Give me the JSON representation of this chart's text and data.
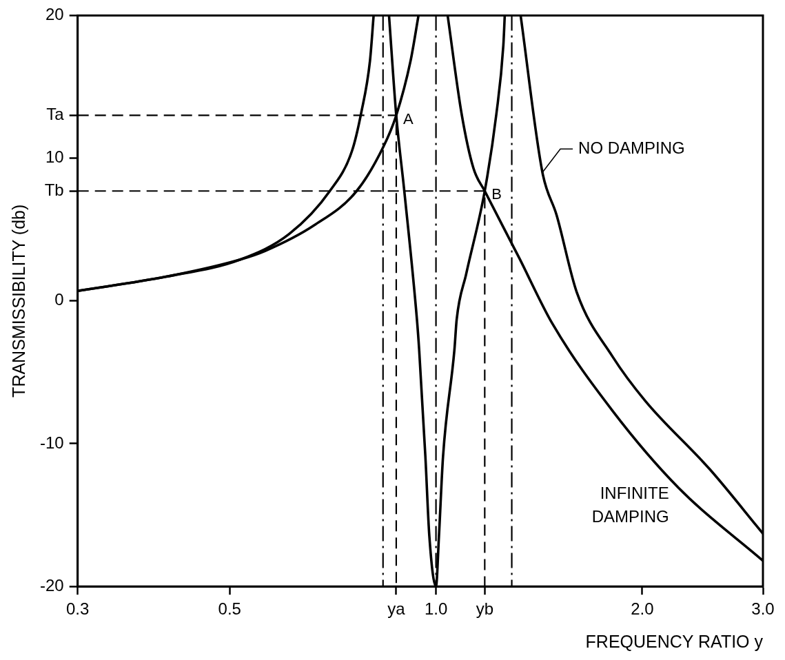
{
  "chart_data": {
    "type": "line",
    "xlabel": "FREQUENCY RATIO y",
    "ylabel": "TRANSMISSIBILITY (db)",
    "log": "x",
    "grid": false,
    "legend": false,
    "marker": "none",
    "xlim": [
      0.3,
      3
    ],
    "ylim": [
      -20,
      20
    ],
    "xticks": [
      {
        "value": 0.3,
        "label": "0.3"
      },
      {
        "value": 0.5,
        "label": "0.5"
      },
      {
        "value": 0.875,
        "label": "ya"
      },
      {
        "value": 1,
        "label": "1.0"
      },
      {
        "value": 1.178,
        "label": "yb"
      },
      {
        "value": 2,
        "label": "2.0"
      },
      {
        "value": 3,
        "label": "3.0"
      }
    ],
    "yticks": [
      -20,
      -10,
      0,
      {
        "value": 7.7,
        "label": "Tb"
      },
      10,
      {
        "value": 13,
        "label": "Ta"
      },
      20
    ],
    "series": [
      {
        "name": "NO DAMPING",
        "type": "line",
        "color": "#000000",
        "line_style": "solid",
        "x": [
          0.3,
          0.404,
          0.518,
          0.611,
          0.7,
          0.754,
          0.778,
          0.801,
          0.811,
          0.837,
          0.854,
          0.875,
          0.899,
          0.938,
          0.945,
          0.965,
          0.978,
          1.0,
          1.01,
          1.024,
          1.064,
          1.072,
          1.107,
          1.178,
          1.225,
          1.254,
          1.26,
          1.29,
          1.329,
          1.43,
          1.5,
          1.605,
          1.81,
          2.02,
          2.51,
          3.0
        ],
        "values": [
          0.7,
          1.7,
          2.9,
          4.7,
          7.7,
          10.5,
          13.2,
          16.8,
          20,
          null,
          20,
          13,
          7.7,
          -1.3,
          -3.4,
          -10.9,
          -16.5,
          -20,
          -16.5,
          -10.9,
          -3.4,
          -1.3,
          1.9,
          7.7,
          13.1,
          17.9,
          20,
          null,
          20,
          9,
          6,
          0.6,
          -3.9,
          -7,
          -11.8,
          -16.3
        ]
      },
      {
        "name": "INFINITE DAMPING",
        "type": "line",
        "color": "#000000",
        "line_style": "solid",
        "x": [
          0.3,
          0.404,
          0.518,
          0.563,
          0.664,
          0.766,
          0.838,
          0.875,
          0.918,
          0.943,
          0.99,
          1.04,
          1.09,
          1.134,
          1.178,
          1.323,
          1.479,
          1.81,
          2.26,
          3.0
        ],
        "values": [
          0.7,
          1.7,
          2.9,
          3.5,
          5.3,
          7.7,
          10.8,
          13,
          16.8,
          20,
          null,
          20,
          13.1,
          9.3,
          7.7,
          3,
          -1.6,
          -7.7,
          -13.1,
          -18.2
        ]
      },
      {
        "type": "line",
        "color": "#000000",
        "line_style": "dashed",
        "x": [
          0.3,
          0.875,
          0.875
        ],
        "values": [
          13,
          13,
          -20
        ]
      },
      {
        "type": "line",
        "color": "#000000",
        "line_style": "dashed",
        "x": [
          0.3,
          1.178,
          1.178
        ],
        "values": [
          7.7,
          7.7,
          -20
        ]
      }
    ],
    "ref_lines": [
      {
        "axis": "x",
        "value": 0.837,
        "color": "#000000",
        "line_style": "dashdot"
      },
      {
        "axis": "x",
        "value": 1.0,
        "color": "#000000",
        "line_style": "dashdot"
      },
      {
        "axis": "x",
        "value": 1.29,
        "color": "#000000",
        "line_style": "dashdot"
      }
    ],
    "annotations": [
      {
        "text": "A",
        "x": 0.875,
        "y": 13
      },
      {
        "text": "B",
        "x": 1.178,
        "y": 7.7
      }
    ]
  }
}
